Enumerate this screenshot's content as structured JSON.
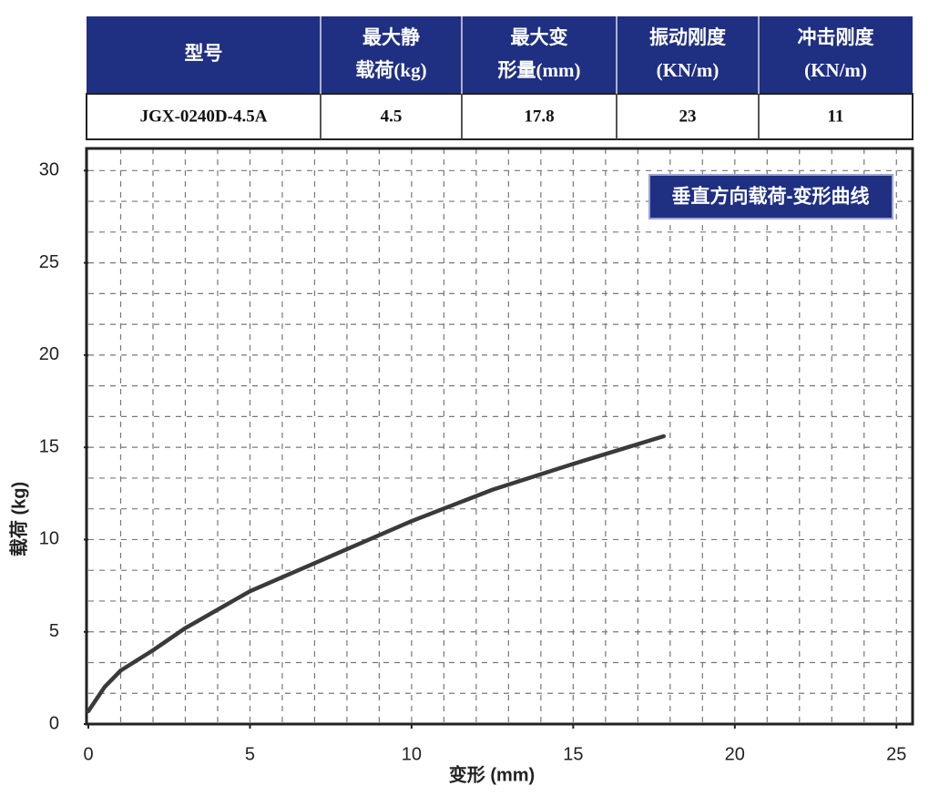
{
  "table": {
    "header": [
      [
        "型号"
      ],
      [
        "最大静",
        "载荷(kg)"
      ],
      [
        "最大变",
        "形量(mm)"
      ],
      [
        "振动刚度",
        "(KN/m)"
      ],
      [
        "冲击刚度",
        "(KN/m)"
      ]
    ],
    "rows": [
      [
        "JGX-0240D-4.5A",
        "4.5",
        "17.8",
        "23",
        "11"
      ]
    ]
  },
  "chart_data": {
    "type": "line",
    "title": "垂直方向载荷-变形曲线",
    "x_label": "变形 (mm)",
    "y_label": "载荷 (kg)",
    "xlim": [
      0,
      25.5
    ],
    "ylim": [
      0,
      31.2
    ],
    "xticks": [
      0,
      5,
      10,
      15,
      20,
      25
    ],
    "yticks": [
      0,
      5,
      10,
      15,
      20,
      25,
      30
    ],
    "grid": true,
    "x": [
      0,
      0.5,
      1,
      2,
      3,
      5,
      7.5,
      10,
      12.5,
      15,
      17.8
    ],
    "series": [
      {
        "name": "载荷",
        "color": "#3a3a3a",
        "values": [
          0.7,
          2.0,
          2.9,
          4.0,
          5.2,
          7.2,
          9.1,
          11.0,
          12.7,
          14.1,
          15.6
        ]
      }
    ]
  }
}
